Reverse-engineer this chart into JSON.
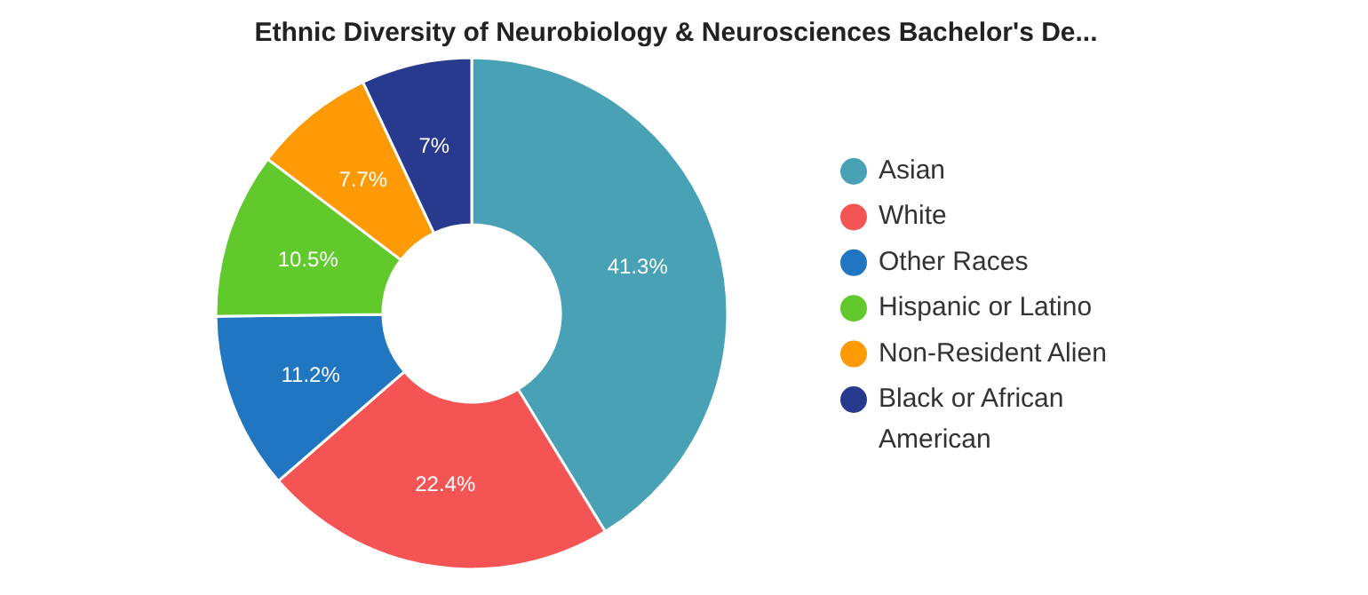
{
  "chart_data": {
    "type": "donut",
    "title": "Ethnic Diversity of Neurobiology & Neurosciences Bachelor's De...",
    "categories": [
      "Asian",
      "White",
      "Other Races",
      "Hispanic or Latino",
      "Non-Resident Alien",
      "Black or African American"
    ],
    "values": [
      41.3,
      22.4,
      11.2,
      10.5,
      7.7,
      7
    ],
    "colors": [
      "#48a1b4",
      "#f55454",
      "#2176c1",
      "#61c92c",
      "#fd9a05",
      "#283a8e"
    ],
    "value_labels": [
      "41.3%",
      "22.4%",
      "11.2%",
      "10.5%",
      "7.7%",
      "7%"
    ],
    "legend": "right"
  }
}
